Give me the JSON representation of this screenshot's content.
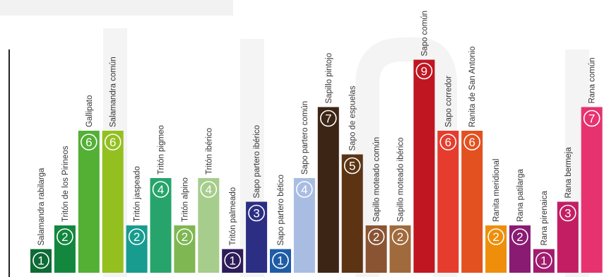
{
  "chart_data": {
    "type": "bar",
    "title": "",
    "xlabel": "",
    "ylabel": "",
    "ylim": [
      0,
      10
    ],
    "categories": [
      "Salamandra rabilarga",
      "Tritón de los Pirineos",
      "Gallipato",
      "Salamandra común",
      "Tritón jaspeado",
      "Tritón pigmeo",
      "Tritón alpino",
      "Tritón ibérico",
      "Tritón palmeado",
      "Sapo partero ibérico",
      "Sapo partero bético",
      "Sapo partero común",
      "Sapillo pintojo",
      "Sapo de espuelas",
      "Sapillo moteado común",
      "Sapillo moteado ibérico",
      "Sapo común",
      "Sapo corredor",
      "Ranita de San Antonio",
      "Ranita meridional",
      "Rana patilarga",
      "Rana pirenaica",
      "Rana bermeja",
      "Rana común"
    ],
    "values": [
      1,
      2,
      6,
      6,
      2,
      4,
      2,
      4,
      1,
      3,
      1,
      4,
      7,
      5,
      2,
      2,
      9,
      6,
      6,
      2,
      2,
      1,
      3,
      7
    ],
    "colors": [
      "#0e6b35",
      "#13873e",
      "#53b035",
      "#93c01f",
      "#179c8f",
      "#27a46b",
      "#7fb752",
      "#a6cd8c",
      "#2e1c5a",
      "#2b2e83",
      "#1e5ca6",
      "#a9bde3",
      "#3d2516",
      "#5c3414",
      "#8a5433",
      "#a06a3c",
      "#c01622",
      "#e63c2d",
      "#e2511f",
      "#ef8e0a",
      "#8a1b73",
      "#a11c6e",
      "#c31e63",
      "#e6326e"
    ]
  }
}
